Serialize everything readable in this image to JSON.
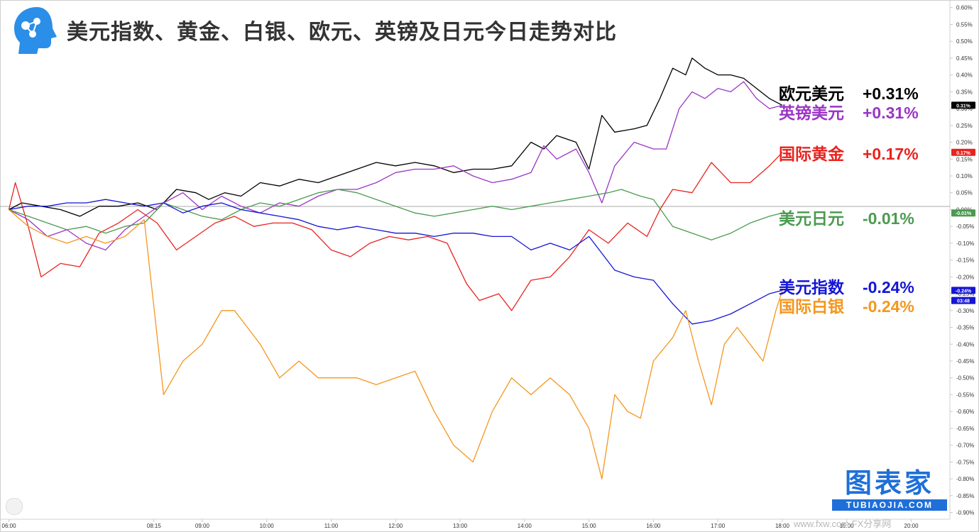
{
  "title": "美元指数、黄金、白银、欧元、英镑及日元今日走势对比",
  "brand": {
    "top": "图表家",
    "bottom": "TUBIAOJIA.COM"
  },
  "watermark": "www.fxw.com FX分享网",
  "annotations": [
    {
      "name": "欧元美元",
      "value": "+0.31%",
      "color": "#000000"
    },
    {
      "name": "英镑美元",
      "value": "+0.31%",
      "color": "#9b35c4"
    },
    {
      "name": "国际黄金",
      "value": "+0.17%",
      "color": "#e8231e"
    },
    {
      "name": "美元日元",
      "value": "-0.01%",
      "color": "#4c9a50"
    },
    {
      "name": "美元指数",
      "value": "-0.24%",
      "color": "#1515d6"
    },
    {
      "name": "国际白银",
      "value": "-0.24%",
      "color": "#f5961f"
    }
  ],
  "chart_data": {
    "type": "line",
    "ylim": [
      -0.92,
      0.61
    ],
    "y_ticks": [
      "0.60%",
      "0.55%",
      "0.50%",
      "0.45%",
      "0.40%",
      "0.35%",
      "0.30%",
      "0.25%",
      "0.20%",
      "0.15%",
      "0.10%",
      "0.05%",
      "0.00%",
      "-0.05%",
      "-0.10%",
      "-0.15%",
      "-0.20%",
      "-0.25%",
      "-0.30%",
      "-0.35%",
      "-0.40%",
      "-0.45%",
      "-0.50%",
      "-0.55%",
      "-0.60%",
      "-0.65%",
      "-0.70%",
      "-0.75%",
      "-0.80%",
      "-0.85%",
      "-0.90%"
    ],
    "x_ticks": [
      "06:00",
      "08:15",
      "09:00",
      "10:00",
      "11:00",
      "12:00",
      "13:00",
      "14:00",
      "15:00",
      "16:00",
      "17:00",
      "18:00",
      "19:00",
      "20:00"
    ],
    "x_tick_hours": [
      6,
      8.25,
      9,
      10,
      11,
      12,
      13,
      14,
      15,
      16,
      17,
      18,
      19,
      20
    ],
    "x_range_hours": [
      5.95,
      20.6
    ],
    "price_tags": [
      {
        "text": "0.31%",
        "value": 0.31,
        "color": "#000000"
      },
      {
        "text": "0.17%",
        "value": 0.17,
        "color": "#e8231e"
      },
      {
        "text": "-0.01%",
        "value": -0.01,
        "color": "#4c9a50"
      },
      {
        "text": "-0.24%",
        "value": -0.24,
        "color": "#1515d6"
      },
      {
        "text": "03:48",
        "value": -0.27,
        "color": "#1515d6"
      }
    ],
    "series": [
      {
        "name": "欧元美元",
        "color": "#000000",
        "x": [
          6.0,
          6.2,
          6.5,
          6.8,
          7.1,
          7.4,
          7.7,
          8.0,
          8.3,
          8.6,
          8.9,
          9.1,
          9.35,
          9.6,
          9.9,
          10.2,
          10.5,
          10.8,
          11.1,
          11.4,
          11.7,
          12.0,
          12.3,
          12.6,
          12.9,
          13.2,
          13.5,
          13.8,
          14.1,
          14.3,
          14.5,
          14.8,
          15.0,
          15.2,
          15.4,
          15.7,
          15.9,
          16.1,
          16.3,
          16.5,
          16.6,
          16.8,
          17.0,
          17.2,
          17.4,
          17.6,
          17.8,
          18.0
        ],
        "y": [
          0.0,
          0.02,
          0.01,
          0.0,
          -0.02,
          0.01,
          0.01,
          0.02,
          0.0,
          0.06,
          0.05,
          0.03,
          0.05,
          0.04,
          0.08,
          0.07,
          0.09,
          0.08,
          0.1,
          0.12,
          0.14,
          0.13,
          0.14,
          0.13,
          0.11,
          0.12,
          0.12,
          0.13,
          0.2,
          0.18,
          0.22,
          0.2,
          0.12,
          0.28,
          0.23,
          0.24,
          0.25,
          0.33,
          0.42,
          0.4,
          0.45,
          0.42,
          0.4,
          0.4,
          0.39,
          0.36,
          0.33,
          0.31
        ]
      },
      {
        "name": "英镑美元",
        "color": "#9b35c4",
        "x": [
          6.0,
          6.3,
          6.6,
          6.9,
          7.2,
          7.5,
          7.8,
          8.1,
          8.4,
          8.7,
          9.0,
          9.3,
          9.6,
          9.9,
          10.2,
          10.5,
          10.8,
          11.1,
          11.4,
          11.7,
          12.0,
          12.3,
          12.6,
          12.9,
          13.2,
          13.5,
          13.8,
          14.1,
          14.3,
          14.5,
          14.8,
          15.0,
          15.2,
          15.4,
          15.7,
          16.0,
          16.2,
          16.4,
          16.6,
          16.8,
          17.0,
          17.2,
          17.4,
          17.6,
          17.8,
          18.0
        ],
        "y": [
          0.0,
          -0.03,
          -0.08,
          -0.06,
          -0.1,
          -0.12,
          -0.06,
          -0.02,
          0.02,
          0.05,
          0.0,
          0.04,
          0.01,
          -0.01,
          0.02,
          0.01,
          0.04,
          0.06,
          0.06,
          0.08,
          0.11,
          0.12,
          0.12,
          0.13,
          0.1,
          0.08,
          0.09,
          0.11,
          0.19,
          0.15,
          0.18,
          0.11,
          0.02,
          0.13,
          0.2,
          0.18,
          0.18,
          0.3,
          0.35,
          0.33,
          0.36,
          0.35,
          0.38,
          0.33,
          0.3,
          0.31
        ]
      },
      {
        "name": "国际黄金",
        "color": "#e8231e",
        "x": [
          6.0,
          6.1,
          6.3,
          6.5,
          6.8,
          7.1,
          7.4,
          7.7,
          8.0,
          8.3,
          8.6,
          8.9,
          9.2,
          9.5,
          9.8,
          10.1,
          10.4,
          10.7,
          11.0,
          11.3,
          11.6,
          11.9,
          12.2,
          12.5,
          12.8,
          13.1,
          13.3,
          13.6,
          13.8,
          14.1,
          14.4,
          14.7,
          15.0,
          15.3,
          15.6,
          15.9,
          16.1,
          16.3,
          16.6,
          16.9,
          17.2,
          17.5,
          17.8,
          18.0
        ],
        "y": [
          0.0,
          0.08,
          -0.05,
          -0.2,
          -0.16,
          -0.17,
          -0.07,
          -0.04,
          0.0,
          -0.04,
          -0.12,
          -0.08,
          -0.04,
          -0.02,
          -0.05,
          -0.04,
          -0.04,
          -0.06,
          -0.12,
          -0.14,
          -0.1,
          -0.08,
          -0.09,
          -0.08,
          -0.1,
          -0.22,
          -0.27,
          -0.25,
          -0.3,
          -0.21,
          -0.2,
          -0.14,
          -0.06,
          -0.1,
          -0.04,
          -0.08,
          0.0,
          0.06,
          0.05,
          0.14,
          0.08,
          0.08,
          0.13,
          0.17
        ]
      },
      {
        "name": "美元日元",
        "color": "#4c9a50",
        "x": [
          6.0,
          6.3,
          6.6,
          6.9,
          7.2,
          7.5,
          7.8,
          8.1,
          8.4,
          8.7,
          9.0,
          9.3,
          9.6,
          9.9,
          10.2,
          10.5,
          10.8,
          11.1,
          11.4,
          11.7,
          12.0,
          12.3,
          12.6,
          12.9,
          13.2,
          13.5,
          13.8,
          14.1,
          14.4,
          14.7,
          15.0,
          15.3,
          15.5,
          15.8,
          16.0,
          16.3,
          16.6,
          16.9,
          17.2,
          17.5,
          17.8,
          18.0
        ],
        "y": [
          0.0,
          -0.02,
          -0.04,
          -0.06,
          -0.05,
          -0.07,
          -0.05,
          -0.04,
          0.02,
          0.0,
          -0.02,
          -0.03,
          0.0,
          0.02,
          0.01,
          0.03,
          0.05,
          0.06,
          0.05,
          0.03,
          0.01,
          -0.01,
          -0.02,
          -0.01,
          0.0,
          0.01,
          0.0,
          0.01,
          0.02,
          0.03,
          0.04,
          0.05,
          0.06,
          0.04,
          0.03,
          -0.05,
          -0.07,
          -0.09,
          -0.07,
          -0.04,
          -0.02,
          -0.01
        ]
      },
      {
        "name": "美元指数",
        "color": "#1515d6",
        "x": [
          6.0,
          6.3,
          6.6,
          6.9,
          7.2,
          7.5,
          7.8,
          8.1,
          8.4,
          8.7,
          9.0,
          9.3,
          9.6,
          9.9,
          10.2,
          10.5,
          10.8,
          11.1,
          11.4,
          11.7,
          12.0,
          12.3,
          12.6,
          12.9,
          13.2,
          13.5,
          13.8,
          14.1,
          14.4,
          14.7,
          15.0,
          15.2,
          15.4,
          15.7,
          16.0,
          16.3,
          16.6,
          16.9,
          17.2,
          17.5,
          17.8,
          18.0
        ],
        "y": [
          0.0,
          0.01,
          0.01,
          0.02,
          0.02,
          0.03,
          0.02,
          0.01,
          0.02,
          -0.01,
          0.01,
          0.02,
          0.0,
          -0.01,
          -0.02,
          -0.03,
          -0.05,
          -0.06,
          -0.05,
          -0.06,
          -0.07,
          -0.07,
          -0.08,
          -0.07,
          -0.07,
          -0.08,
          -0.08,
          -0.12,
          -0.1,
          -0.12,
          -0.08,
          -0.13,
          -0.18,
          -0.2,
          -0.21,
          -0.28,
          -0.34,
          -0.33,
          -0.31,
          -0.28,
          -0.25,
          -0.24
        ]
      },
      {
        "name": "国际白银",
        "color": "#f5961f",
        "x": [
          6.0,
          6.3,
          6.6,
          6.9,
          7.2,
          7.5,
          7.8,
          8.1,
          8.4,
          8.7,
          9.0,
          9.15,
          9.3,
          9.5,
          9.7,
          9.9,
          10.2,
          10.5,
          10.8,
          11.1,
          11.4,
          11.7,
          12.0,
          12.3,
          12.6,
          12.9,
          13.2,
          13.5,
          13.8,
          14.1,
          14.4,
          14.7,
          15.0,
          15.2,
          15.4,
          15.6,
          15.8,
          16.0,
          16.3,
          16.5,
          16.7,
          16.9,
          17.1,
          17.3,
          17.5,
          17.7,
          17.9,
          18.0
        ],
        "y": [
          0.0,
          -0.05,
          -0.08,
          -0.1,
          -0.08,
          -0.1,
          -0.08,
          -0.03,
          -0.55,
          -0.45,
          -0.4,
          -0.35,
          -0.3,
          -0.3,
          -0.35,
          -0.4,
          -0.5,
          -0.45,
          -0.5,
          -0.5,
          -0.5,
          -0.52,
          -0.5,
          -0.48,
          -0.6,
          -0.7,
          -0.75,
          -0.6,
          -0.5,
          -0.55,
          -0.5,
          -0.55,
          -0.65,
          -0.8,
          -0.55,
          -0.6,
          -0.62,
          -0.45,
          -0.38,
          -0.3,
          -0.45,
          -0.58,
          -0.4,
          -0.35,
          -0.4,
          -0.45,
          -0.3,
          -0.24
        ]
      }
    ]
  }
}
